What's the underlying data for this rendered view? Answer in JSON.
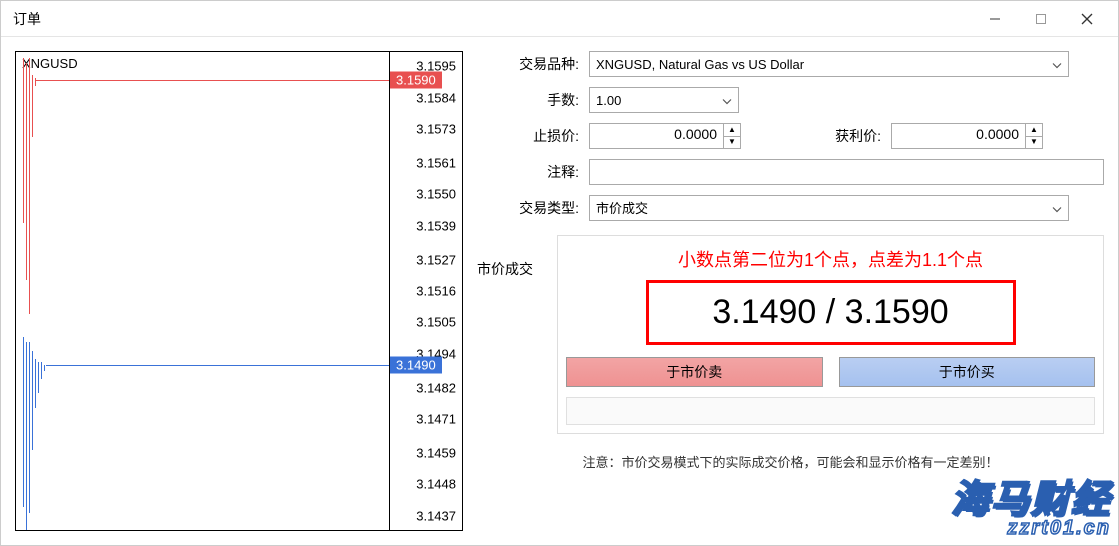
{
  "window": {
    "title": "订单"
  },
  "chart": {
    "symbol": "XNGUSD",
    "y_max": 3.16,
    "y_min": 3.1432,
    "ticks": [
      3.1595,
      3.1584,
      3.1573,
      3.1561,
      3.155,
      3.1539,
      3.1527,
      3.1516,
      3.1505,
      3.1494,
      3.1482,
      3.1471,
      3.1459,
      3.1448,
      3.1437
    ],
    "ask_marker": 3.159,
    "bid_marker": 3.149,
    "ask_line_x_start_pct": 5,
    "bid_line_x_start_pct": 8,
    "colors": {
      "ask": "#e85050",
      "bid": "#3a72d8",
      "axis": "#000000",
      "bg": "#ffffff"
    },
    "red_sticks": [
      {
        "x_pct": 2.0,
        "top_v": 3.1598,
        "bot_v": 3.154
      },
      {
        "x_pct": 2.8,
        "top_v": 3.1596,
        "bot_v": 3.152
      },
      {
        "x_pct": 3.6,
        "top_v": 3.1598,
        "bot_v": 3.1508
      },
      {
        "x_pct": 4.4,
        "top_v": 3.1592,
        "bot_v": 3.157
      },
      {
        "x_pct": 5.2,
        "top_v": 3.1591,
        "bot_v": 3.1588
      }
    ],
    "blue_sticks": [
      {
        "x_pct": 2.0,
        "top_v": 3.15,
        "bot_v": 3.144
      },
      {
        "x_pct": 2.8,
        "top_v": 3.1498,
        "bot_v": 3.1432
      },
      {
        "x_pct": 3.6,
        "top_v": 3.1498,
        "bot_v": 3.1438
      },
      {
        "x_pct": 4.4,
        "top_v": 3.1495,
        "bot_v": 3.146
      },
      {
        "x_pct": 5.2,
        "top_v": 3.1492,
        "bot_v": 3.1475
      },
      {
        "x_pct": 6.0,
        "top_v": 3.1491,
        "bot_v": 3.148
      },
      {
        "x_pct": 6.8,
        "top_v": 3.1491,
        "bot_v": 3.1485
      },
      {
        "x_pct": 7.6,
        "top_v": 3.149,
        "bot_v": 3.1488
      }
    ]
  },
  "form": {
    "symbol_label": "交易品种:",
    "symbol_value": "XNGUSD, Natural Gas vs US Dollar",
    "volume_label": "手数:",
    "volume_value": "1.00",
    "stoploss_label": "止损价:",
    "stoploss_value": "0.0000",
    "takeprofit_label": "获利价:",
    "takeprofit_value": "0.0000",
    "comment_label": "注释:",
    "comment_value": "",
    "type_label": "交易类型:",
    "type_value": "市价成交",
    "market_label": "市价成交",
    "annotation": "小数点第二位为1个点，点差为1.1个点",
    "price_display": "3.1490 / 3.1590",
    "sell_label": "于市价卖",
    "buy_label": "于市价买",
    "note": "注意：市价交易模式下的实际成交价格，可能会和显示价格有一定差别！"
  },
  "watermark": {
    "main": "海马财经",
    "sub": "zzrt01.cn"
  }
}
